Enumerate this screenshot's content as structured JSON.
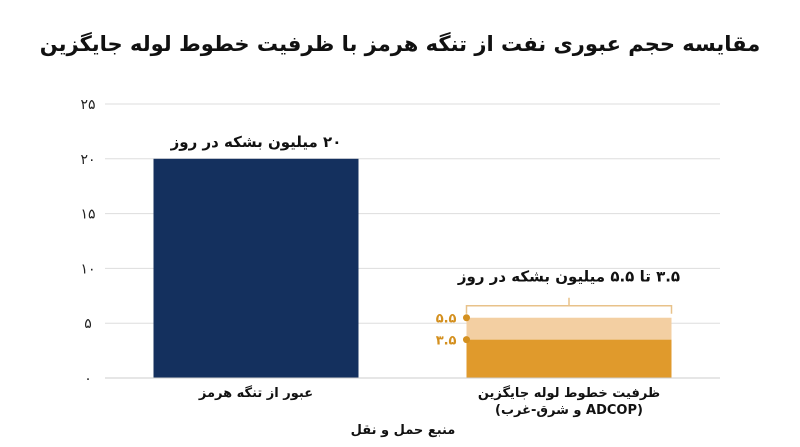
{
  "chart_data": {
    "type": "bar",
    "title": "مقایسه حجم عبوری نفت از تنگه هرمز با ظرفیت خطوط لوله جایگزین",
    "xlabel": "منبع حمل و نقل",
    "ylabel": "",
    "ylim": [
      0,
      25
    ],
    "yticks": [
      {
        "value": 0,
        "label": "۰"
      },
      {
        "value": 5,
        "label": "۵"
      },
      {
        "value": 10,
        "label": "۱۰"
      },
      {
        "value": 15,
        "label": "۱۵"
      },
      {
        "value": 20,
        "label": "۲۰"
      },
      {
        "value": 25,
        "label": "۲۵"
      }
    ],
    "grid": true,
    "categories": [
      {
        "label_lines": [
          "عبور از تنگه هرمز"
        ]
      },
      {
        "label_lines": [
          "ظرفیت خطوط لوله جایگزین",
          "(ADCOP و شرق-غرب)"
        ]
      }
    ],
    "bars": [
      {
        "value": 20,
        "color": "#14305e",
        "annotation": "۲۰ میلیون بشکه در روز"
      },
      {
        "low": 3.5,
        "high": 5.5,
        "color": "#e09a2c",
        "range_color": "#f3cfa2",
        "annotation": "۳.۵ تا ۵.۵ میلیون بشکه در روز",
        "markers": [
          {
            "value": 5.5,
            "label": "۵.۵"
          },
          {
            "value": 3.5,
            "label": "۳.۵"
          }
        ],
        "marker_color": "#d4901f"
      }
    ],
    "grid_color": "#dddddd"
  }
}
